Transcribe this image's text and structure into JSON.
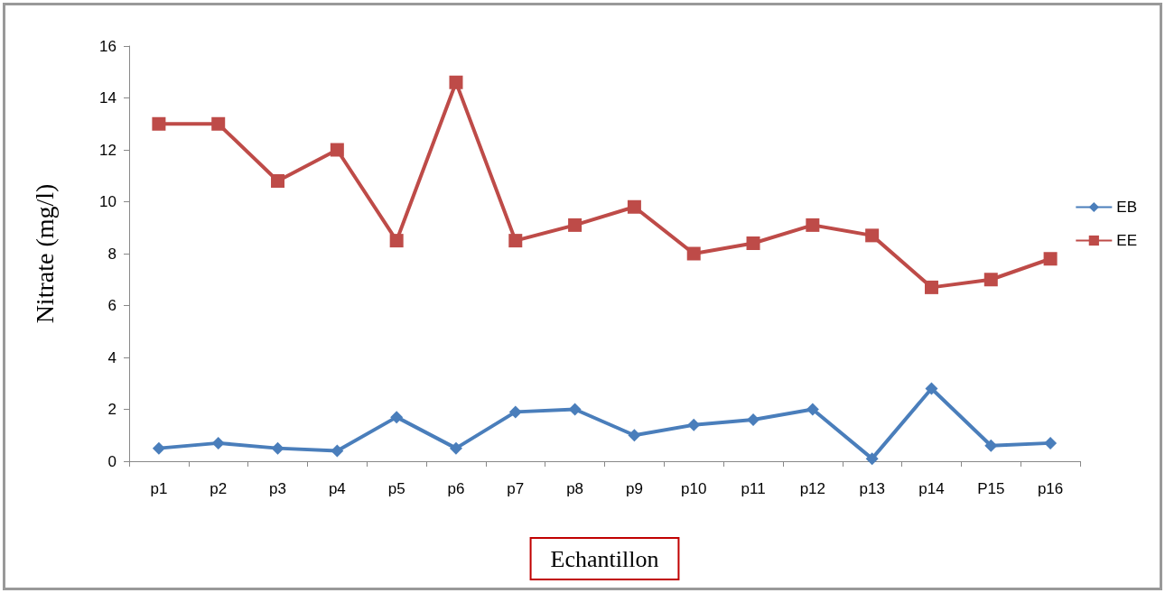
{
  "chart_data": {
    "type": "line",
    "xlabel": "Echantillon",
    "ylabel": "Nitrate (mg/l)",
    "categories": [
      "p1",
      "p2",
      "p3",
      "p4",
      "p5",
      "p6",
      "p7",
      "p8",
      "p9",
      "p10",
      "p11",
      "p12",
      "p13",
      "p14",
      "P15",
      "p16"
    ],
    "series": [
      {
        "name": "EB",
        "color": "#4a7ebb",
        "marker": "diamond",
        "values": [
          0.5,
          0.7,
          0.5,
          0.4,
          1.7,
          0.5,
          1.9,
          2.0,
          1.0,
          1.4,
          1.6,
          2.0,
          0.1,
          2.8,
          0.6,
          0.7
        ]
      },
      {
        "name": "EE",
        "color": "#be4b48",
        "marker": "square",
        "values": [
          13,
          13,
          10.8,
          12,
          8.5,
          14.6,
          8.5,
          9.1,
          9.8,
          8,
          8.4,
          9.1,
          8.7,
          6.7,
          7.0,
          7.8
        ]
      }
    ],
    "ylim": [
      0,
      16
    ],
    "yticks": [
      0,
      2,
      4,
      6,
      8,
      10,
      12,
      14,
      16
    ],
    "grid": false,
    "legend": "right",
    "line_style": "solid"
  }
}
